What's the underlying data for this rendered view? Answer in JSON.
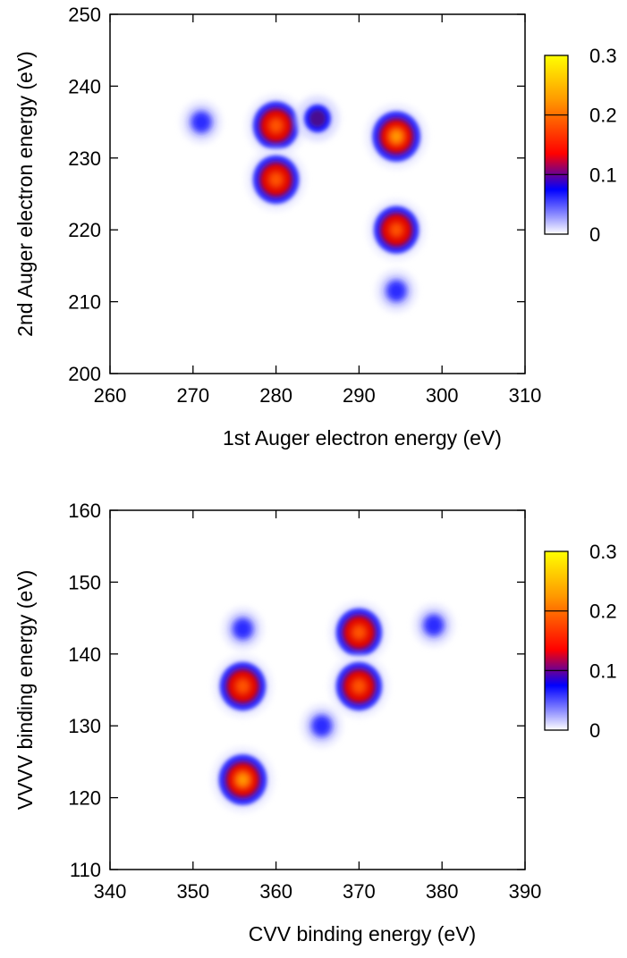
{
  "chart_data": [
    {
      "type": "heatmap",
      "xlabel": "1st Auger electron energy (eV)",
      "ylabel": "2nd Auger electron energy (eV)",
      "xlim": [
        260,
        310
      ],
      "ylim": [
        200,
        250
      ],
      "xticks": [
        "260",
        "270",
        "280",
        "290",
        "300",
        "310"
      ],
      "yticks": [
        "200",
        "210",
        "220",
        "230",
        "240",
        "250"
      ],
      "colorbar": {
        "ticks": [
          "0",
          "0.1",
          "0.2",
          "0.3"
        ],
        "range": [
          0,
          0.3
        ]
      },
      "colormap": [
        "#ffffff",
        "#0000ff",
        "#ff0000",
        "#ffff00"
      ],
      "peaks": [
        {
          "x": 280,
          "y": 234.5,
          "value": 0.18
        },
        {
          "x": 280,
          "y": 227,
          "value": 0.18
        },
        {
          "x": 294.5,
          "y": 233,
          "value": 0.22
        },
        {
          "x": 294.5,
          "y": 220,
          "value": 0.17
        },
        {
          "x": 285,
          "y": 235.5,
          "value": 0.08
        },
        {
          "x": 271,
          "y": 235,
          "value": 0.03
        },
        {
          "x": 294.5,
          "y": 211.5,
          "value": 0.03
        }
      ],
      "grid": false
    },
    {
      "type": "heatmap",
      "xlabel": "CVV binding energy (eV)",
      "ylabel": "VVVV binding energy (eV)",
      "xlim": [
        340,
        390
      ],
      "ylim": [
        110,
        160
      ],
      "xticks": [
        "340",
        "350",
        "360",
        "370",
        "380",
        "390"
      ],
      "yticks": [
        "110",
        "120",
        "130",
        "140",
        "150",
        "160"
      ],
      "colorbar": {
        "ticks": [
          "0",
          "0.1",
          "0.2",
          "0.3"
        ],
        "range": [
          0,
          0.3
        ]
      },
      "colormap": [
        "#ffffff",
        "#0000ff",
        "#ff0000",
        "#ffff00"
      ],
      "peaks": [
        {
          "x": 356,
          "y": 122.5,
          "value": 0.22
        },
        {
          "x": 356,
          "y": 135.5,
          "value": 0.18
        },
        {
          "x": 370,
          "y": 143,
          "value": 0.18
        },
        {
          "x": 370,
          "y": 135.5,
          "value": 0.18
        },
        {
          "x": 365.5,
          "y": 130,
          "value": 0.05
        },
        {
          "x": 356,
          "y": 143.5,
          "value": 0.03
        },
        {
          "x": 379,
          "y": 144,
          "value": 0.03
        }
      ],
      "grid": false
    }
  ]
}
